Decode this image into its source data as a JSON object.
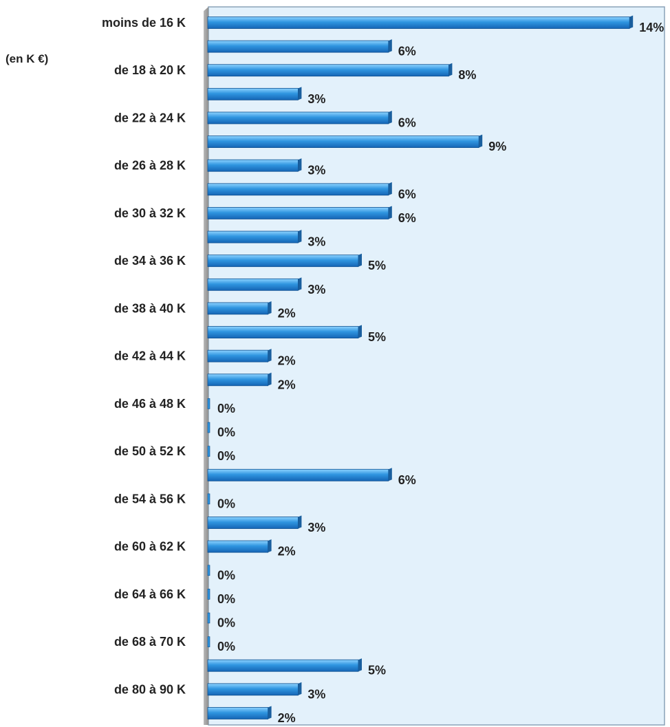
{
  "chart_data": {
    "type": "bar",
    "orientation": "horizontal",
    "unit_label": "(en K €)",
    "title": "",
    "xlabel": "",
    "ylabel": "",
    "xlim": [
      0,
      14
    ],
    "grid": false,
    "legend": "none",
    "categories": [
      "moins de 16 K",
      "",
      "de 18 à 20 K",
      "",
      "de 22 à 24 K",
      "",
      "de 26 à 28 K",
      "",
      "de 30 à 32 K",
      "",
      "de 34 à 36 K",
      "",
      "de 38 à 40 K",
      "",
      "de 42 à 44 K",
      "",
      "de 46 à 48 K",
      "",
      "de 50 à 52 K",
      "",
      "de 54 à 56 K",
      "",
      "de 60 à 62 K",
      "",
      "de 64 à 66 K",
      "",
      "de 68 à 70 K",
      "",
      "de 80 à 90 K",
      ""
    ],
    "values": [
      14,
      6,
      8,
      3,
      6,
      9,
      3,
      6,
      6,
      3,
      5,
      3,
      2,
      5,
      2,
      2,
      0,
      0,
      0,
      6,
      0,
      3,
      2,
      0,
      0,
      0,
      0,
      5,
      3,
      2
    ],
    "data_labels": [
      "14%",
      "6%",
      "8%",
      "3%",
      "6%",
      "9%",
      "3%",
      "6%",
      "6%",
      "3%",
      "5%",
      "3%",
      "2%",
      "5%",
      "2%",
      "2%",
      "0%",
      "0%",
      "0%",
      "6%",
      "0%",
      "3%",
      "2%",
      "0%",
      "0%",
      "0%",
      "0%",
      "5%",
      "3%",
      "2%"
    ],
    "colors": {
      "bar_top": "#8ed3ff",
      "bar_mid": "#2f95e0",
      "bar_bottom": "#1565b5",
      "bar_edge": "#0d4f8f",
      "bar_end": "#1a5f9e",
      "plot_background": "#e3f1fb",
      "plot_border": "#8aa2b8",
      "axis_wall": "#8f8f8f",
      "text": "#222222"
    }
  }
}
